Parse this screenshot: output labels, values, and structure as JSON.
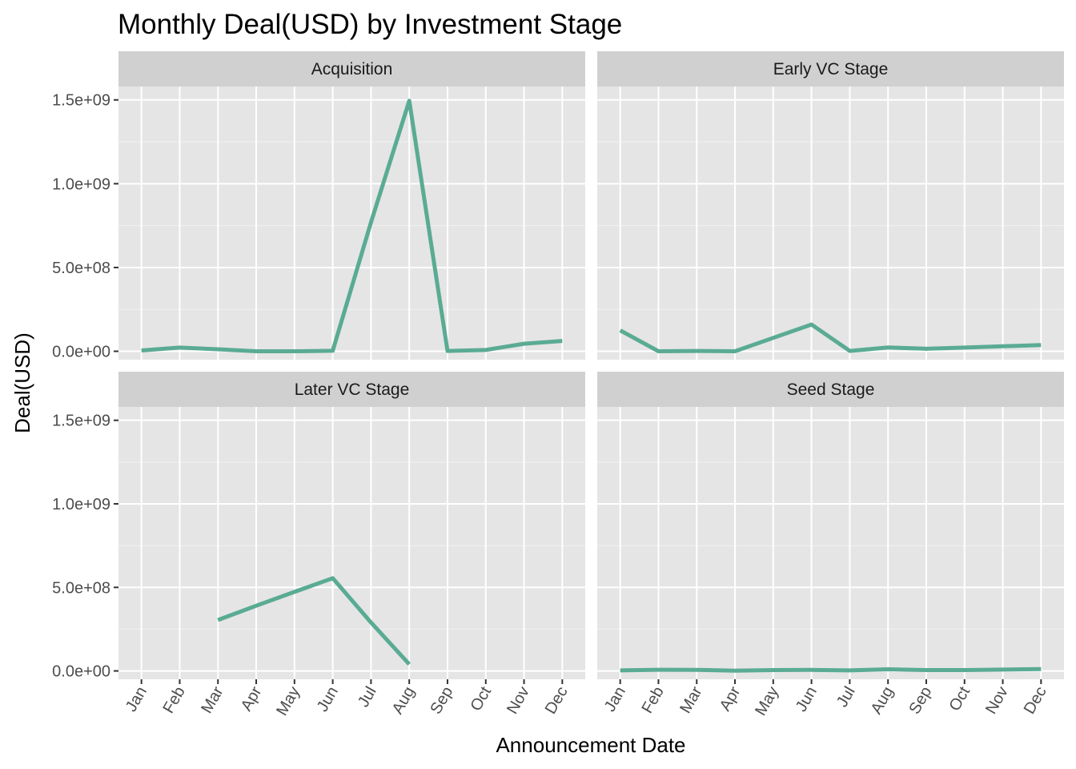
{
  "chart_data": {
    "type": "line",
    "title": "Monthly Deal(USD) by Investment Stage",
    "xlabel": "Announcement Date",
    "ylabel": "Deal(USD)",
    "categories": [
      "Jan",
      "Feb",
      "Mar",
      "Apr",
      "May",
      "Jun",
      "Jul",
      "Aug",
      "Sep",
      "Oct",
      "Nov",
      "Dec"
    ],
    "ylim": [
      -50000000,
      1580000000
    ],
    "yticks": [
      0,
      500000000,
      1000000000,
      1500000000
    ],
    "ytick_labels": [
      "0.0e+00",
      "5.0e+08",
      "1.0e+09",
      "1.5e+09"
    ],
    "line_color": "#5aab93",
    "panel_background": "#e5e5e5",
    "strip_background": "#d0d0d0",
    "grid": true,
    "facets": [
      {
        "name": "Acquisition",
        "values": [
          5000000,
          22000000,
          12000000,
          0,
          0,
          3000000,
          770000000,
          1495000000,
          2000000,
          8000000,
          45000000,
          62000000
        ]
      },
      {
        "name": "Early VC Stage",
        "values": [
          125000000,
          0,
          2000000,
          0,
          80000000,
          160000000,
          2000000,
          23000000,
          15000000,
          22000000,
          30000000,
          37000000
        ]
      },
      {
        "name": "Later VC Stage",
        "values": [
          null,
          null,
          305000000,
          390000000,
          473000000,
          555000000,
          290000000,
          40000000,
          null,
          null,
          null,
          null
        ]
      },
      {
        "name": "Seed Stage",
        "values": [
          3000000,
          7000000,
          6000000,
          2000000,
          5000000,
          6000000,
          3000000,
          10000000,
          5000000,
          5000000,
          8000000,
          11000000
        ]
      }
    ]
  }
}
